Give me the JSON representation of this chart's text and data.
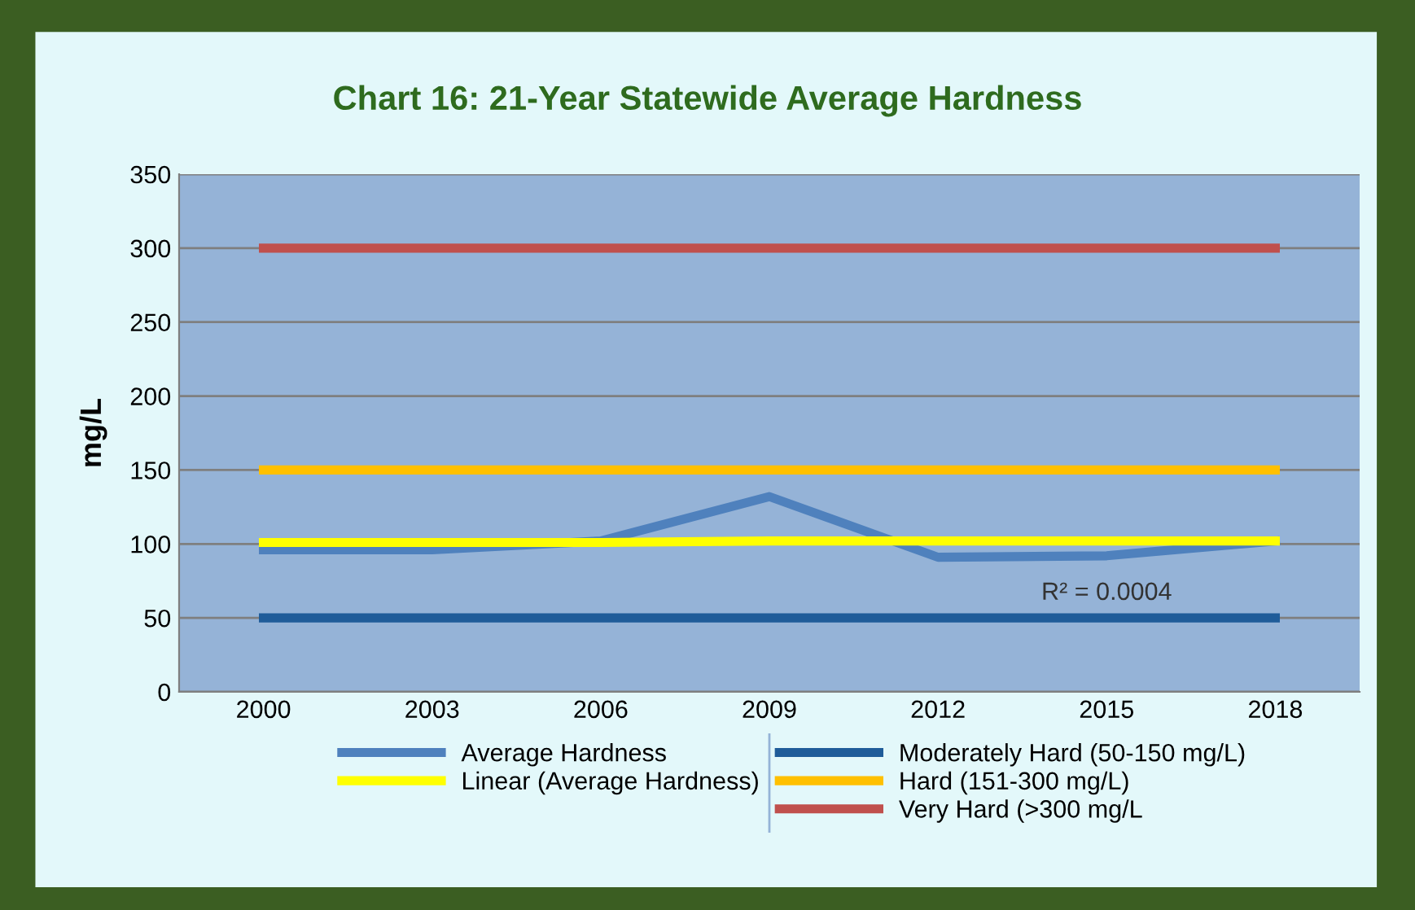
{
  "chart_data": {
    "type": "line",
    "title": "Chart 16: 21-Year Statewide Average Hardness",
    "ylabel": "mg/L",
    "categories": [
      "2000",
      "2003",
      "2006",
      "2009",
      "2012",
      "2015",
      "2018"
    ],
    "series": [
      {
        "name": "Moderately Hard (50-150 mg/L)",
        "color": "#1f5c99",
        "values": [
          50,
          50,
          50,
          50,
          50,
          50,
          50
        ]
      },
      {
        "name": "Hard (151-300 mg/L)",
        "color": "#ffc000",
        "values": [
          150,
          150,
          150,
          150,
          150,
          150,
          150
        ]
      },
      {
        "name": "Very Hard (>300 mg/L",
        "color": "#c0504d",
        "values": [
          300,
          300,
          300,
          300,
          300,
          300,
          300
        ]
      },
      {
        "name": "Average Hardness",
        "color": "#4f81bd",
        "values": [
          96,
          96,
          102,
          132,
          91,
          92,
          102
        ]
      },
      {
        "name": "Linear (Average Hardness)",
        "color": "#ffff00",
        "values": [
          101,
          101,
          101,
          102,
          102,
          102,
          102
        ]
      }
    ],
    "annotations": [
      {
        "text": "R² = 0.0004",
        "x": "2015",
        "y": 102
      }
    ],
    "ylim": [
      0,
      350
    ],
    "yticks": [
      0,
      50,
      100,
      150,
      200,
      250,
      300,
      350
    ],
    "grid": "y",
    "legend": "bottom"
  }
}
